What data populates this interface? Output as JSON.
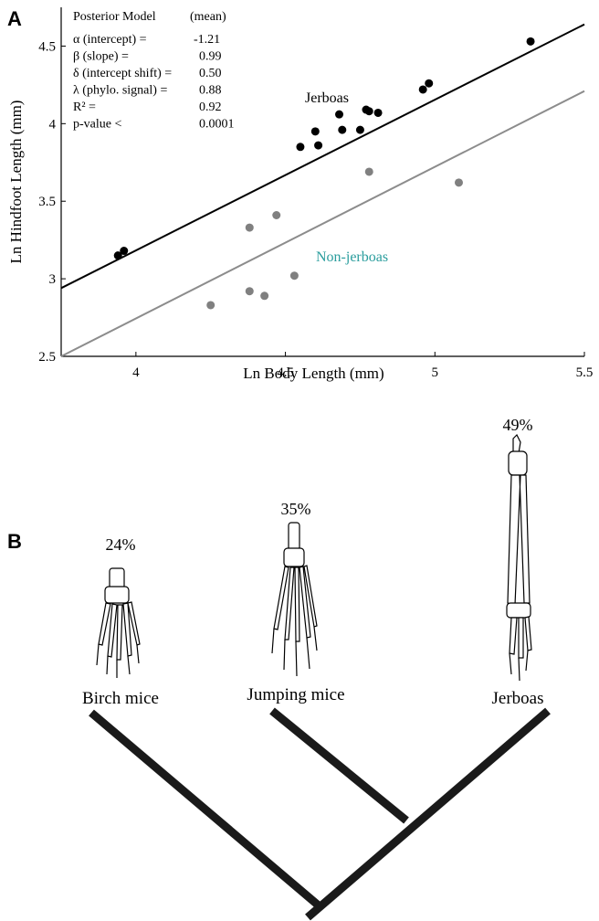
{
  "panel_labels": [
    "A",
    "B"
  ],
  "chart_data": {
    "type": "scatter",
    "x_label": "Ln Body Length (mm)",
    "y_label": "Ln Hindfoot Length (mm)",
    "xlim": [
      3.75,
      5.5
    ],
    "xticks": [
      4,
      4.5,
      5,
      5.5
    ],
    "ylim": [
      2.5,
      4.75
    ],
    "yticks": [
      2.5,
      3,
      3.5,
      4,
      4.5
    ],
    "stats": {
      "header": [
        "Posterior Model",
        "(mean)"
      ],
      "rows": [
        [
          "α  (intercept) =",
          "-1.21"
        ],
        [
          "β (slope) =",
          "0.99"
        ],
        [
          "δ (intercept shift) =",
          "0.50"
        ],
        [
          "λ (phylo. signal) =",
          "0.88"
        ],
        [
          "R² =",
          "0.92"
        ],
        [
          "p-value <",
          "0.0001"
        ]
      ]
    },
    "series": [
      {
        "name": "Jerboas",
        "color": "#000000",
        "label_color": "#000000",
        "x": [
          3.94,
          3.96,
          4.55,
          4.6,
          4.61,
          4.68,
          4.69,
          4.75,
          4.77,
          4.78,
          4.81,
          4.96,
          4.98,
          5.32
        ],
        "values": [
          3.15,
          3.18,
          3.85,
          3.95,
          3.86,
          4.06,
          3.96,
          3.96,
          4.09,
          4.08,
          4.07,
          4.22,
          4.26,
          4.53
        ],
        "fit": {
          "color": "#000000",
          "x": [
            3.75,
            5.5
          ],
          "values": [
            2.94,
            4.64
          ]
        }
      },
      {
        "name": "Non-jerboas",
        "color": "#808080",
        "label_color": "#2a9d9d",
        "x": [
          4.25,
          4.38,
          4.38,
          4.43,
          4.47,
          4.53,
          4.78,
          5.08
        ],
        "values": [
          2.83,
          2.92,
          3.33,
          2.89,
          3.41,
          3.02,
          3.69,
          3.62
        ],
        "fit": {
          "color": "#8c8c8c",
          "x": [
            3.75,
            5.5
          ],
          "values": [
            2.5,
            4.21
          ]
        }
      }
    ]
  },
  "phylogeny": {
    "taxa": [
      {
        "label": "Birch mice",
        "percent": "24%"
      },
      {
        "label": "Jumping mice",
        "percent": "35%"
      },
      {
        "label": "Jerboas",
        "percent": "49%"
      }
    ]
  }
}
